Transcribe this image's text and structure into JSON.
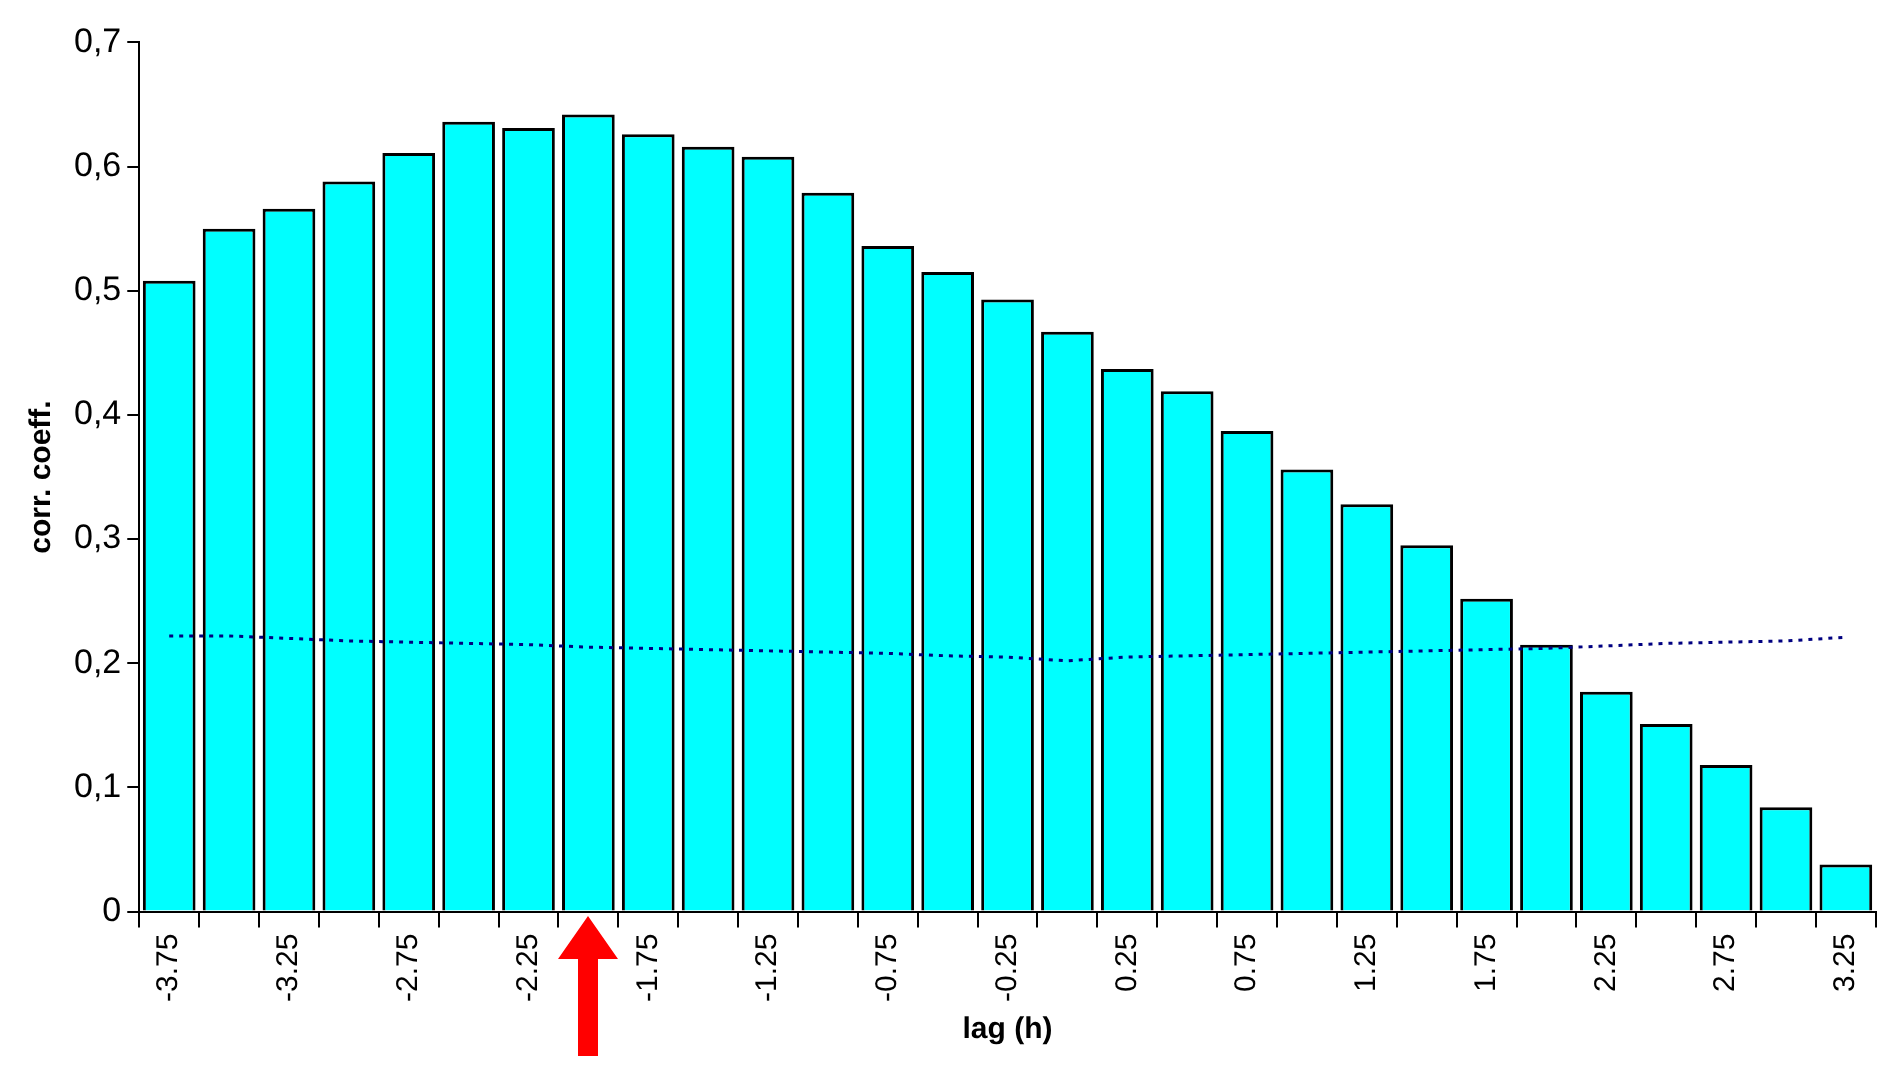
{
  "chart_data": {
    "type": "bar",
    "xlabel": "lag (h)",
    "ylabel": "corr. coeff.",
    "categories": [
      "-3.75",
      null,
      "-3.25",
      null,
      "-2.75",
      null,
      "-2.25",
      null,
      "-1.75",
      null,
      "-1.25",
      null,
      "-0.75",
      null,
      "-0.25",
      null,
      "0.25",
      null,
      "0.75",
      null,
      "1.25",
      null,
      "1.75",
      null,
      "2.25",
      null,
      "2.75",
      null,
      "3.25"
    ],
    "series": [
      {
        "color": "#00ffff",
        "values": [
          0.508,
          0.55,
          0.566,
          0.588,
          0.611,
          0.636,
          0.631,
          0.642,
          0.626,
          0.616,
          0.608,
          0.579,
          0.536,
          0.515,
          0.493,
          0.467,
          0.437,
          0.419,
          0.387,
          0.356,
          0.328,
          0.295,
          0.252,
          0.215,
          0.177,
          0.151,
          0.118,
          0.084,
          0.038
        ]
      },
      {
        "type": "line",
        "color": "#000080",
        "values": [
          0.222,
          0.222,
          0.22,
          0.218,
          0.217,
          0.216,
          0.215,
          0.213,
          0.212,
          0.211,
          0.21,
          0.209,
          0.208,
          0.206,
          0.205,
          0.202,
          0.205,
          0.206,
          0.207,
          0.208,
          0.209,
          0.21,
          0.211,
          0.212,
          0.214,
          0.216,
          0.217,
          0.218,
          0.221
        ]
      }
    ],
    "line_style": "dotted",
    "marker": "none",
    "legend": false,
    "grid": false,
    "ylim": [
      0,
      0.7
    ],
    "yticks": [
      0,
      {
        "value": 0.1,
        "label": "0,1"
      },
      {
        "value": 0.2,
        "label": "0,2"
      },
      {
        "value": 0.3,
        "label": "0,3"
      },
      {
        "value": 0.4,
        "label": "0,4"
      },
      {
        "value": 0.5,
        "label": "0,5"
      },
      {
        "value": 0.6,
        "label": "0,6"
      },
      {
        "value": 0.7,
        "label": "0,7"
      }
    ]
  }
}
